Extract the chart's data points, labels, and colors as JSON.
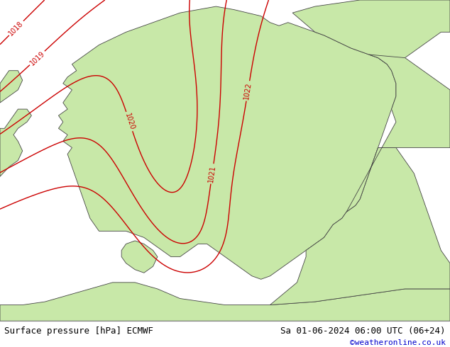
{
  "title_left": "Surface pressure [hPa] ECMWF",
  "title_right": "Sa 01-06-2024 06:00 UTC (06+24)",
  "watermark": "©weatheronline.co.uk",
  "sea_color": "#d8d8d8",
  "land_color": "#c8e8a8",
  "land_edge_color": "#444444",
  "fig_width": 6.34,
  "fig_height": 4.9,
  "dpi": 100,
  "bottom_bar_color": "#ffffff",
  "blue_contour_color": "#0000dd",
  "red_contour_color": "#cc0000",
  "black_contour_color": "#000000",
  "font_size_bottom": 9,
  "font_size_watermark": 8,
  "label_fontsize": 7
}
